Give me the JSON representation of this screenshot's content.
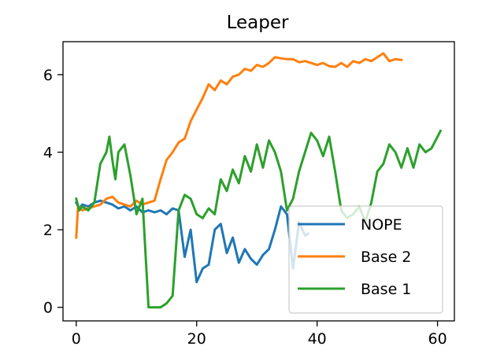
{
  "chart_data": {
    "type": "line",
    "title": "Leaper",
    "xlabel": "",
    "ylabel": "",
    "xlim": [
      -2.2,
      62.8
    ],
    "ylim": [
      -0.35,
      6.85
    ],
    "xticks": [
      0,
      20,
      40,
      60
    ],
    "yticks": [
      0,
      2,
      4,
      6
    ],
    "grid": false,
    "legend": "lower right",
    "series": [
      {
        "name": "NOPE",
        "color": "#1f77b4",
        "x": [
          0,
          0.5,
          1,
          2,
          3,
          4,
          5,
          6,
          7,
          8,
          9,
          10,
          11,
          12,
          13,
          14,
          15,
          16,
          17,
          18,
          19,
          20,
          21,
          22,
          23,
          24,
          25,
          26,
          27,
          28,
          29,
          30,
          31,
          32,
          33,
          34,
          35,
          36,
          37,
          38,
          38.5
        ],
        "y": [
          2.7,
          2.55,
          2.65,
          2.6,
          2.7,
          2.75,
          2.7,
          2.65,
          2.55,
          2.6,
          2.5,
          2.6,
          2.45,
          2.5,
          2.45,
          2.5,
          2.4,
          2.55,
          2.5,
          1.3,
          2.0,
          0.65,
          1.0,
          1.1,
          2.0,
          2.15,
          1.4,
          1.8,
          1.15,
          1.5,
          1.25,
          1.1,
          1.35,
          1.5,
          2.0,
          2.6,
          2.4,
          1.0,
          2.2,
          1.85,
          1.9
        ]
      },
      {
        "name": "Base 2",
        "color": "#ff7f0e",
        "x": [
          0,
          0.3,
          1,
          2,
          3,
          4,
          5,
          6,
          7,
          8,
          9,
          10,
          11,
          12,
          13,
          14,
          15,
          16,
          17,
          18,
          19,
          20,
          21,
          22,
          23,
          24,
          25,
          26,
          27,
          28,
          29,
          30,
          31,
          32,
          33,
          34,
          35,
          36,
          37,
          38,
          39,
          40,
          41,
          42,
          43,
          44,
          45,
          46,
          47,
          48,
          49,
          50,
          51,
          52,
          53,
          54
        ],
        "y": [
          1.8,
          2.6,
          2.5,
          2.55,
          2.6,
          2.65,
          2.8,
          2.85,
          2.7,
          2.65,
          2.6,
          2.75,
          2.65,
          2.7,
          2.75,
          3.3,
          3.8,
          4.0,
          4.25,
          4.35,
          4.8,
          5.1,
          5.4,
          5.75,
          5.6,
          5.85,
          5.75,
          5.95,
          6.0,
          6.15,
          6.1,
          6.25,
          6.2,
          6.3,
          6.45,
          6.42,
          6.4,
          6.4,
          6.32,
          6.35,
          6.3,
          6.25,
          6.3,
          6.22,
          6.2,
          6.3,
          6.2,
          6.35,
          6.3,
          6.4,
          6.35,
          6.45,
          6.55,
          6.35,
          6.4,
          6.38
        ]
      },
      {
        "name": "Base 1",
        "color": "#2ca02c",
        "x": [
          0,
          0.5,
          1,
          2,
          3,
          4,
          5,
          5.5,
          6,
          6.5,
          7,
          8,
          9,
          10,
          11,
          12,
          13,
          14,
          15,
          16,
          17,
          18,
          19,
          20,
          21,
          22,
          23,
          24,
          25,
          26,
          27,
          28,
          29,
          30,
          31,
          32,
          33,
          34,
          35,
          36,
          37,
          38,
          39,
          40,
          41,
          42,
          43,
          44,
          45,
          46,
          47,
          48,
          49,
          50,
          51,
          52,
          53,
          54,
          55,
          56,
          57,
          58,
          59,
          60,
          60.5
        ],
        "y": [
          2.8,
          2.5,
          2.6,
          2.5,
          2.7,
          3.7,
          4.0,
          4.4,
          3.8,
          3.3,
          4.0,
          4.2,
          3.4,
          2.4,
          2.8,
          0.0,
          0.0,
          0.0,
          0.1,
          0.3,
          2.5,
          2.9,
          2.8,
          2.4,
          2.3,
          2.55,
          2.4,
          3.3,
          3.0,
          3.55,
          3.2,
          3.9,
          3.5,
          4.2,
          3.6,
          4.3,
          4.0,
          3.5,
          2.5,
          2.8,
          3.5,
          4.0,
          4.5,
          4.3,
          3.9,
          4.4,
          3.5,
          2.5,
          2.3,
          2.4,
          2.6,
          2.2,
          2.7,
          3.5,
          3.7,
          4.2,
          4.0,
          3.6,
          4.1,
          3.6,
          4.2,
          4.0,
          4.1,
          4.4,
          4.55
        ]
      }
    ]
  }
}
